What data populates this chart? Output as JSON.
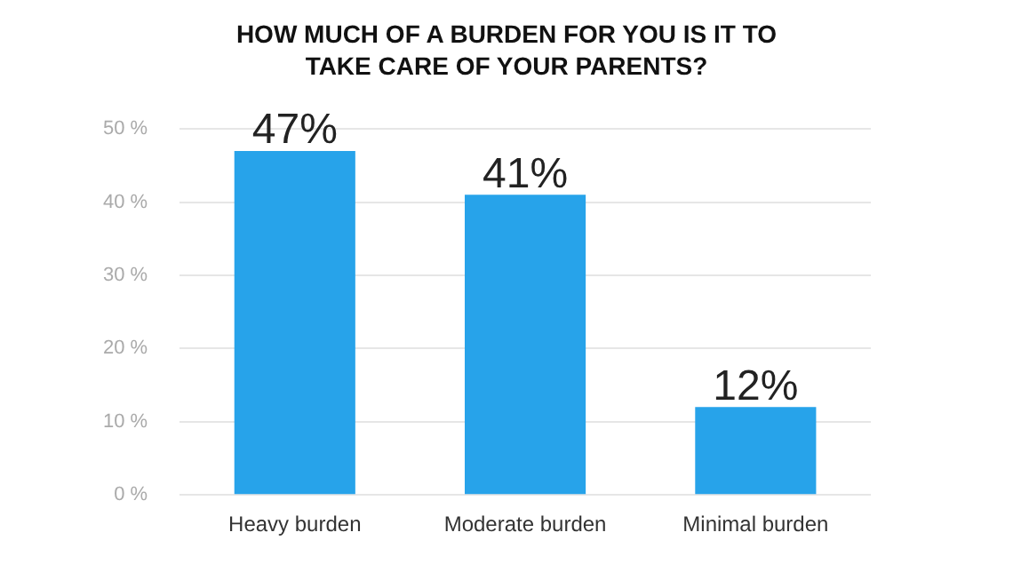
{
  "chart_data": {
    "type": "bar",
    "title": "HOW MUCH OF A BURDEN FOR YOU IS IT TO TAKE CARE OF YOUR PARENTS?",
    "categories": [
      "Heavy burden",
      "Moderate burden",
      "Minimal burden"
    ],
    "values": [
      47,
      41,
      12
    ],
    "color": "#27a3ea",
    "value_labels": [
      "47%",
      "41%",
      "12%"
    ],
    "ylim": [
      0,
      50
    ],
    "yticks": [
      {
        "value": 0,
        "label": "0 %"
      },
      {
        "value": 10,
        "label": "10 %"
      },
      {
        "value": 20,
        "label": "20 %"
      },
      {
        "value": 30,
        "label": "30 %"
      },
      {
        "value": 40,
        "label": "40 %"
      },
      {
        "value": 50,
        "label": "50 %"
      }
    ],
    "grid": "y"
  }
}
